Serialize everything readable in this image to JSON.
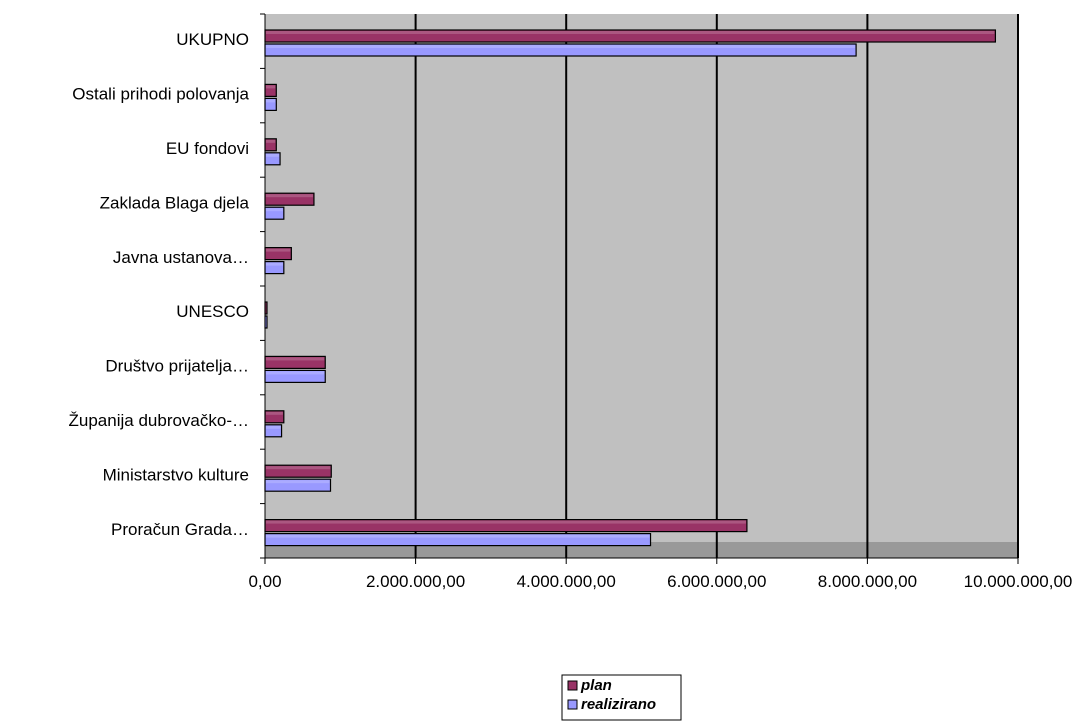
{
  "chart_data": {
    "type": "bar",
    "orientation": "horizontal",
    "categories": [
      "UKUPNO",
      "Ostali prihodi polovanja",
      "EU fondovi",
      "Zaklada Blaga djela",
      "Javna ustanova…",
      "UNESCO",
      "Društvo prijatelja…",
      "Županija dubrovačko-…",
      "Ministarstvo kulture",
      "Proračun Grada…"
    ],
    "series": [
      {
        "name": "plan",
        "color": "#993366",
        "values": [
          9700000,
          150000,
          150000,
          650000,
          350000,
          20000,
          800000,
          250000,
          880000,
          6400000
        ]
      },
      {
        "name": "realizirano",
        "color": "#9999ff",
        "values": [
          7850000,
          150000,
          200000,
          250000,
          250000,
          20000,
          800000,
          220000,
          870000,
          5120000
        ]
      }
    ],
    "xlim": [
      0,
      10000000
    ],
    "x_ticks": [
      0,
      2000000,
      4000000,
      6000000,
      8000000,
      10000000
    ],
    "x_tick_labels": [
      "0,00",
      "2.000.000,00",
      "4.000.000,00",
      "6.000.000,00",
      "8.000.000,00",
      "10.000.000,00"
    ],
    "title": "",
    "xlabel": "",
    "ylabel": "",
    "grid": true,
    "legend_position": "bottom",
    "plot_background": "#c0c0c0"
  }
}
